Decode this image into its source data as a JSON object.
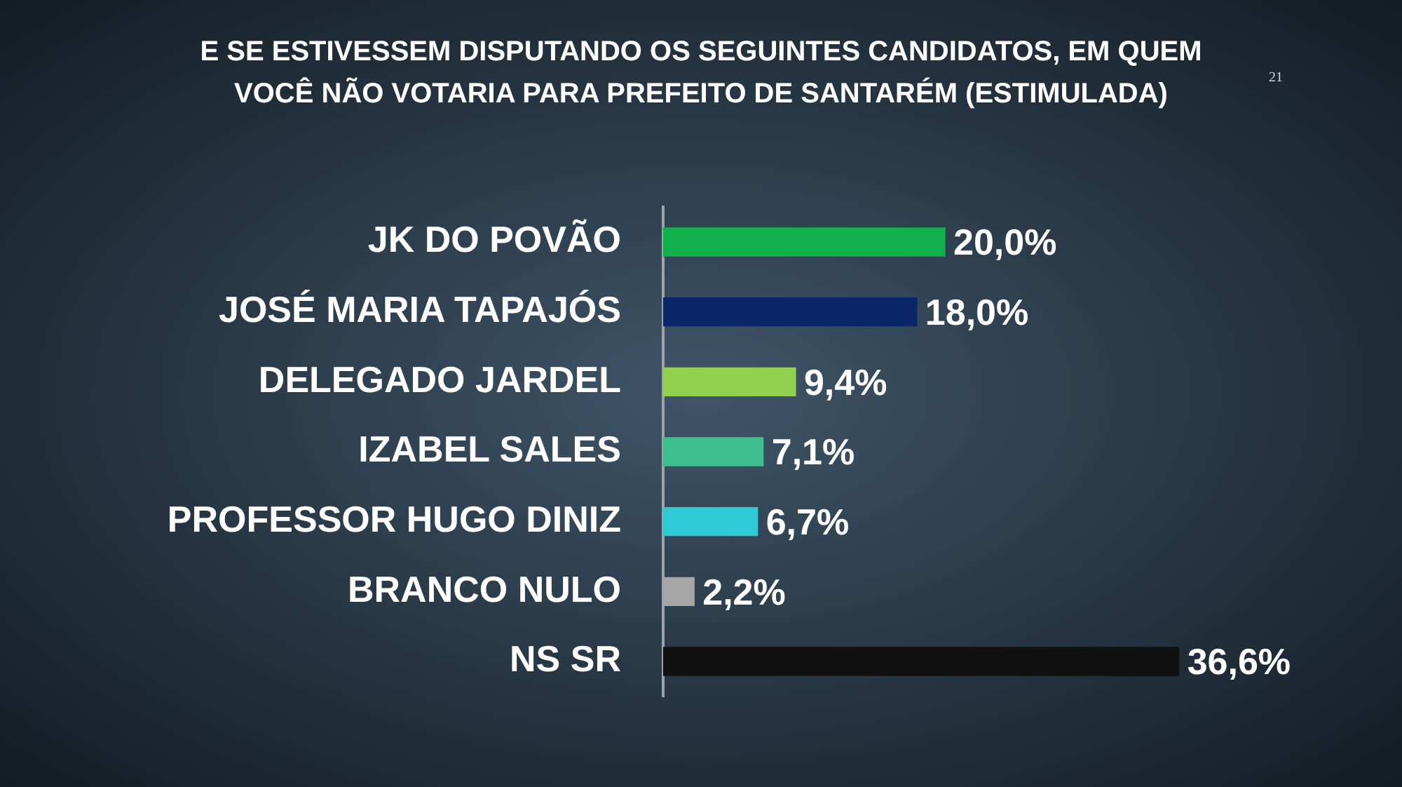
{
  "chart_data": {
    "type": "bar",
    "orientation": "horizontal",
    "title": "E SE ESTIVESSEM DISPUTANDO OS SEGUINTES CANDIDATOS, EM QUEM VOCÊ NÃO VOTARIA PARA PREFEITO DE SANTARÉM (ESTIMULADA)",
    "categories": [
      "JK DO POVÃO",
      "JOSÉ MARIA TAPAJÓS",
      "DELEGADO JARDEL",
      "IZABEL SALES",
      "PROFESSOR HUGO DINIZ",
      "BRANCO NULO",
      "NS SR"
    ],
    "values": [
      20.0,
      18.0,
      9.4,
      7.1,
      6.7,
      2.2,
      36.6
    ],
    "colors": [
      "#12b04c",
      "#0b2669",
      "#92d050",
      "#3fbf8f",
      "#2ecbd6",
      "#a6a6a6",
      "#111111"
    ],
    "value_labels": [
      "20,0%",
      "18,0%",
      "9,4%",
      "7,1%",
      "6,7%",
      "2,2%",
      "36,6%"
    ],
    "annotations": [
      "21"
    ]
  }
}
